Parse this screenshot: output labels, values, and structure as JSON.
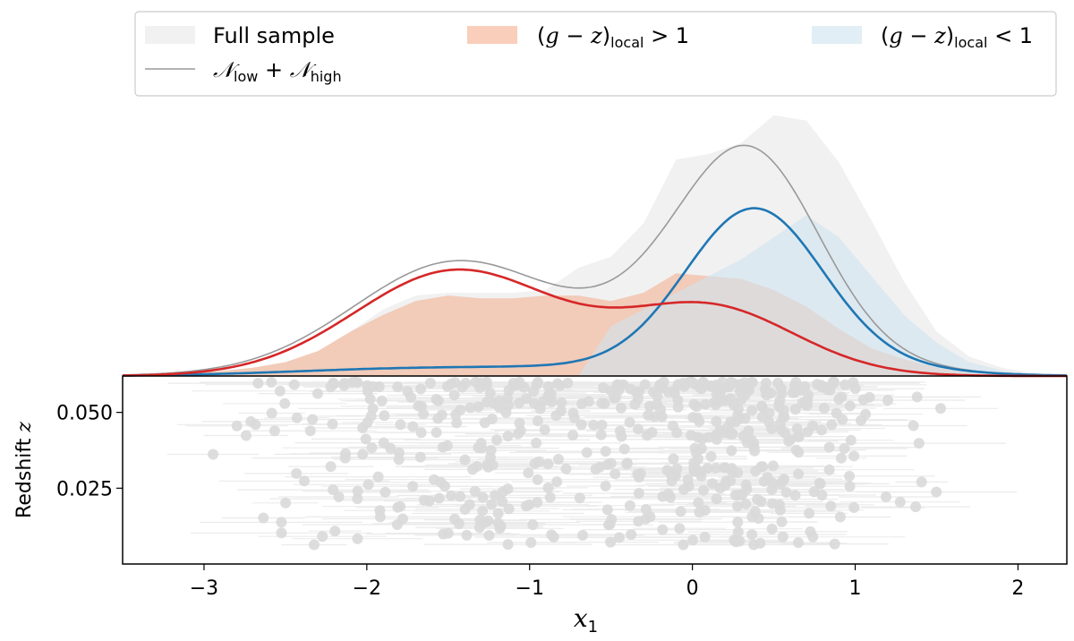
{
  "chart_data": {
    "type": "area",
    "legend": {
      "placement": "top",
      "entries": [
        {
          "key": "full",
          "label": "Full sample",
          "color": "#e6e6e6",
          "kind": "patch"
        },
        {
          "key": "red",
          "label": "(g − z)local > 1",
          "color": "#f4a582",
          "kind": "patch"
        },
        {
          "key": "blue",
          "label": "(g − z)local < 1",
          "color": "#d1e5f0",
          "kind": "patch"
        },
        {
          "key": "sum",
          "label": "Nlow + Nhigh",
          "color": "#999999",
          "kind": "line"
        }
      ]
    },
    "xlabel": "x1",
    "ylabel": "Redshift z",
    "xlim": [
      -3.5,
      2.3
    ],
    "xticks": [
      -3,
      -2,
      -1,
      0,
      1,
      2
    ],
    "xtick_labels": [
      "−3",
      "−2",
      "−1",
      "0",
      "1",
      "2"
    ],
    "ylim": [
      0.0,
      0.062
    ],
    "yticks": [
      0.025,
      0.05
    ],
    "ytick_labels": [
      "0.025",
      "0.050"
    ],
    "colors": {
      "full": "#e6e6e6",
      "red_fill": "#f4a582",
      "blue_fill": "#d1e5f0",
      "sum_line": "#999999",
      "red_line": "#d62728",
      "blue_line": "#1f77b4",
      "scatter": "#d9d9d9"
    },
    "kde_x": [
      -3.5,
      -3.3,
      -3.1,
      -2.9,
      -2.7,
      -2.5,
      -2.3,
      -2.1,
      -1.9,
      -1.7,
      -1.5,
      -1.3,
      -1.1,
      -0.9,
      -0.7,
      -0.5,
      -0.3,
      -0.1,
      0.1,
      0.3,
      0.5,
      0.7,
      0.9,
      1.1,
      1.3,
      1.5,
      1.7,
      1.9,
      2.1,
      2.3
    ],
    "full_sample_density": [
      0.0,
      0.002,
      0.008,
      0.018,
      0.03,
      0.05,
      0.09,
      0.16,
      0.24,
      0.29,
      0.3,
      0.3,
      0.3,
      0.31,
      0.39,
      0.43,
      0.55,
      0.78,
      0.8,
      0.84,
      0.94,
      0.92,
      0.77,
      0.56,
      0.34,
      0.16,
      0.07,
      0.03,
      0.01,
      0.003
    ],
    "red_sample_density": [
      0.0,
      0.002,
      0.008,
      0.018,
      0.03,
      0.05,
      0.09,
      0.16,
      0.22,
      0.27,
      0.29,
      0.28,
      0.28,
      0.29,
      0.29,
      0.27,
      0.3,
      0.37,
      0.36,
      0.35,
      0.31,
      0.25,
      0.17,
      0.1,
      0.06,
      0.03,
      0.01,
      0.004,
      0.001,
      0.0
    ],
    "blue_sample_density": [
      0.0,
      0.0,
      0.0,
      0.0,
      0.0,
      0.0,
      0.0,
      0.0,
      0.0,
      0.0,
      0.0,
      0.0,
      0.0,
      0.0,
      0.0,
      0.18,
      0.24,
      0.3,
      0.36,
      0.42,
      0.5,
      0.58,
      0.5,
      0.36,
      0.22,
      0.12,
      0.05,
      0.02,
      0.005,
      0.0
    ],
    "gaussian_low": {
      "mean": -1.45,
      "sigma": 0.62,
      "amplitude": 0.38
    },
    "gaussian_high": {
      "mean": 0.38,
      "sigma": 0.42,
      "amplitude": 0.57
    },
    "gaussian_red_second": {
      "mean": 0.1,
      "sigma": 0.53,
      "amplitude": 0.3
    },
    "blue_curve_base": {
      "amplitude": 0.035
    },
    "density_ymax": 1.0,
    "scatter_count": 560,
    "scatter_z_range": [
      0.006,
      0.06
    ]
  }
}
